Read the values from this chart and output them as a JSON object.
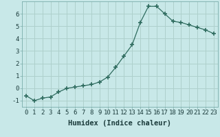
{
  "x": [
    0,
    1,
    2,
    3,
    4,
    5,
    6,
    7,
    8,
    9,
    10,
    11,
    12,
    13,
    14,
    15,
    16,
    17,
    18,
    19,
    20,
    21,
    22,
    23
  ],
  "y": [
    -0.6,
    -1.0,
    -0.8,
    -0.7,
    -0.3,
    0.0,
    0.1,
    0.2,
    0.3,
    0.5,
    0.9,
    1.7,
    2.6,
    3.5,
    5.3,
    6.6,
    6.6,
    6.0,
    5.4,
    5.3,
    5.1,
    4.9,
    4.7,
    4.4
  ],
  "line_color": "#2e6b5e",
  "bg_color": "#c8e8e8",
  "grid_color": "#aed0cc",
  "xlabel": "Humidex (Indice chaleur)",
  "ylim": [
    -1.5,
    7.0
  ],
  "xlim": [
    -0.5,
    23.5
  ],
  "yticks": [
    -1,
    0,
    1,
    2,
    3,
    4,
    5,
    6
  ],
  "xticks": [
    0,
    1,
    2,
    3,
    4,
    5,
    6,
    7,
    8,
    9,
    10,
    11,
    12,
    13,
    14,
    15,
    16,
    17,
    18,
    19,
    20,
    21,
    22,
    23
  ],
  "tick_fontsize": 6.5,
  "xlabel_fontsize": 7.5,
  "marker": "+",
  "marker_size": 4,
  "linewidth": 0.9
}
